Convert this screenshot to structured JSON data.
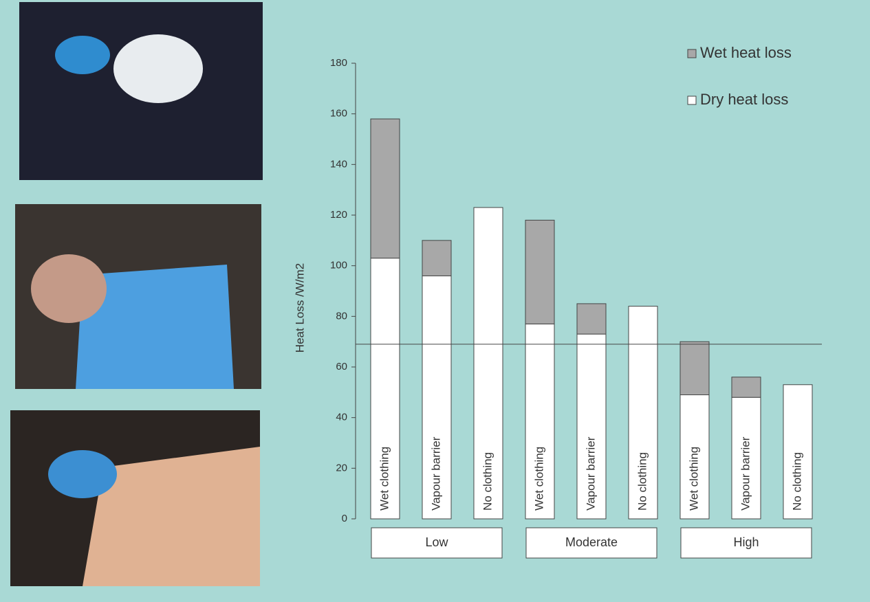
{
  "chart_data": {
    "type": "stacked-bar",
    "y_label": "Heat Loss /W/m2",
    "categories": [
      "Wet clothing",
      "Vapour barrier",
      "No clothing",
      "Wet clothing",
      "Vapour barrier",
      "No clothing",
      "Wet clothing",
      "Vapour barrier",
      "No clothing"
    ],
    "groups": [
      "Low",
      "Moderate",
      "High"
    ],
    "series": [
      {
        "name": "Wet heat loss",
        "color": "#a8a8a8",
        "values": [
          55,
          14,
          0,
          41,
          12,
          0,
          21,
          8,
          0
        ]
      },
      {
        "name": "Dry heat loss",
        "color": "#ffffff",
        "values": [
          103,
          96,
          123,
          77,
          73,
          84,
          49,
          48,
          53
        ]
      }
    ],
    "ylim": [
      0,
      180
    ],
    "yticks": [
      0,
      20,
      40,
      60,
      80,
      100,
      120,
      140,
      160,
      180
    ],
    "reference_line": 69,
    "legend": "top-right"
  }
}
